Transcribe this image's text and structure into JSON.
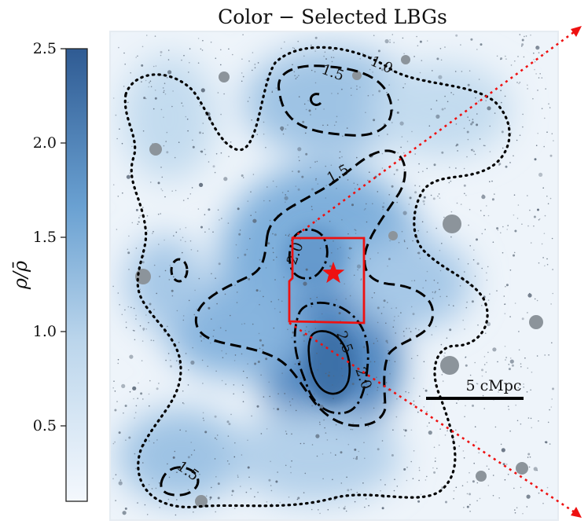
{
  "chart_data": {
    "type": "heatmap",
    "title": "Color − Selected LBGs",
    "colorbar": {
      "label": "ρ/ρ̄",
      "range": [
        0.1,
        2.5
      ],
      "ticks": [
        "0.5",
        "1.0",
        "1.5",
        "2.0",
        "2.5"
      ],
      "cmap_low": "#f4f8fd",
      "cmap_high": "#2f5b93"
    },
    "contour_labels": [
      "1.0",
      "1.5",
      "1.5",
      "2.0",
      "2.5",
      "2.0",
      "1.5"
    ],
    "scale_bar_label": "5 cMpc",
    "marker": "red-star",
    "region_color": "#ee1111"
  }
}
